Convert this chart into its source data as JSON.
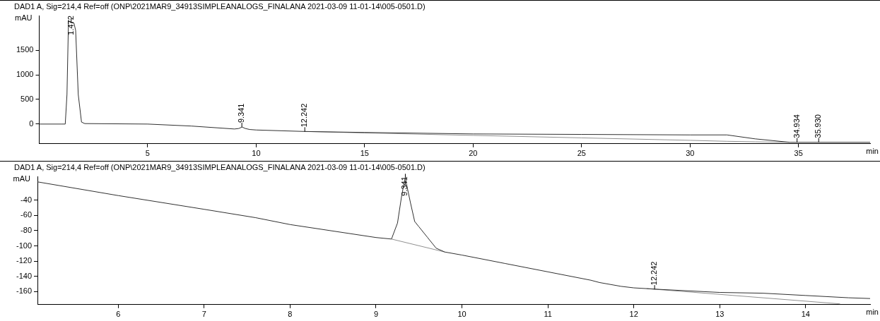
{
  "chart_data": [
    {
      "type": "line",
      "title": "DAD1 A, Sig=214,4 Ref=off (ONP\\2021MAR9_34913SIMPLEANALOGS_FINALANA 2021-03-09 11-01-14\\005-0501.D)",
      "xlabel": "min",
      "ylabel": "mAU",
      "xlim": [
        0,
        38.3
      ],
      "xticks": [
        5,
        10,
        15,
        20,
        25,
        30,
        35
      ],
      "ylim": [
        -400,
        2200
      ],
      "yticks": [
        0,
        500,
        1000,
        1500
      ],
      "series": [
        {
          "color": "#303030",
          "x": [
            0,
            1.0,
            1.2,
            1.28,
            1.35,
            1.45,
            1.6,
            1.68,
            1.8,
            1.95,
            2.1,
            5,
            7,
            9,
            9.2,
            9.35,
            9.5,
            9.7,
            10,
            12.2,
            15,
            20,
            25,
            30,
            31.7,
            33,
            34.6,
            35,
            38.3
          ],
          "values": [
            0,
            0,
            0,
            600,
            2100,
            2060,
            2050,
            1900,
            600,
            40,
            10,
            0,
            -40,
            -100,
            -90,
            -60,
            -90,
            -110,
            -120,
            -150,
            -170,
            -200,
            -210,
            -220,
            -220,
            -300,
            -370,
            -370,
            -370
          ]
        },
        {
          "color": "#909090",
          "x": [
            12.2,
            15,
            20,
            25,
            30,
            31.7,
            33,
            34.6
          ],
          "values": [
            -150,
            -180,
            -230,
            -280,
            -330,
            -350,
            -360,
            -370
          ]
        }
      ],
      "annotations": [
        {
          "text": "1.472",
          "x": 1.472,
          "y": 2060
        },
        {
          "text": "9.341",
          "x": 9.341,
          "y": -60
        },
        {
          "text": "12.242",
          "x": 12.242,
          "y": -150
        },
        {
          "text": "34.934",
          "x": 34.934,
          "y": -370
        },
        {
          "text": "35.930",
          "x": 35.93,
          "y": -370
        }
      ],
      "legend": false,
      "grid": false,
      "marker": "none",
      "line_style": "solid"
    },
    {
      "type": "line",
      "title": "DAD1 A, Sig=214,4 Ref=off (ONP\\2021MAR9_34913SIMPLEANALOGS_FINALANA 2021-03-09 11-01-14\\005-0501.D)",
      "xlabel": "min",
      "ylabel": "mAU",
      "xlim": [
        5.06,
        14.75
      ],
      "xticks": [
        6,
        7,
        8,
        9,
        10,
        11,
        12,
        13,
        14
      ],
      "ylim": [
        -177,
        -9
      ],
      "yticks": [
        -40,
        -60,
        -80,
        -100,
        -120,
        -140,
        -160
      ],
      "series": [
        {
          "color": "#303030",
          "x": [
            5.06,
            6,
            7,
            7.6,
            8,
            9,
            9.18,
            9.25,
            9.3,
            9.34,
            9.4,
            9.45,
            9.5,
            9.6,
            9.7,
            9.8,
            10,
            10.5,
            11,
            11.5,
            11.6,
            11.85,
            12,
            12.3,
            13,
            13.5,
            14,
            14.5,
            14.75
          ],
          "values": [
            -16,
            -34,
            -52,
            -63,
            -72,
            -89,
            -91,
            -70,
            -33,
            -11,
            -43,
            -68,
            -75,
            -89,
            -103,
            -108,
            -112,
            -123,
            -134,
            -145,
            -148,
            -153,
            -155,
            -157,
            -161,
            -162,
            -165,
            -168,
            -169
          ]
        },
        {
          "color": "#909090",
          "x": [
            9.18,
            9.8
          ],
          "values": [
            -91,
            -108
          ]
        },
        {
          "color": "#909090",
          "x": [
            12.15,
            14.4
          ],
          "values": [
            -156,
            -176
          ]
        }
      ],
      "annotations": [
        {
          "text": "9.341",
          "x": 9.341,
          "y": -11
        },
        {
          "text": "12.242",
          "x": 12.242,
          "y": -157
        }
      ],
      "legend": false,
      "grid": false,
      "marker": "none",
      "line_style": "solid"
    }
  ]
}
